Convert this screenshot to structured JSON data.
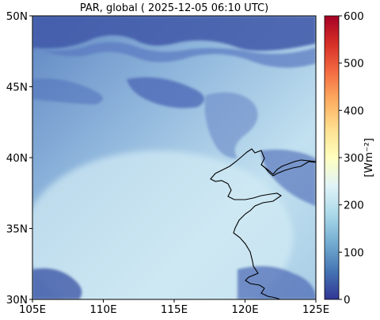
{
  "title": "PAR, global ( 2025-12-05 06:10 UTC)",
  "map": {
    "lon_range": [
      105,
      125
    ],
    "lat_range": [
      30,
      50
    ],
    "x_ticks": [
      {
        "value": 105,
        "label": "105E"
      },
      {
        "value": 110,
        "label": "110E"
      },
      {
        "value": 115,
        "label": "115E"
      },
      {
        "value": 120,
        "label": "120E"
      },
      {
        "value": 125,
        "label": "125E"
      }
    ],
    "y_ticks": [
      {
        "value": 30,
        "label": "30N"
      },
      {
        "value": 35,
        "label": "35N"
      },
      {
        "value": 40,
        "label": "40N"
      },
      {
        "value": 45,
        "label": "45N"
      },
      {
        "value": 50,
        "label": "50N"
      }
    ],
    "coastline_color": "#000000"
  },
  "colorbar": {
    "label": "[Wm⁻²]",
    "range": [
      0,
      600
    ],
    "ticks": [
      {
        "value": 0,
        "label": "0"
      },
      {
        "value": 100,
        "label": "100"
      },
      {
        "value": 200,
        "label": "200"
      },
      {
        "value": 300,
        "label": "300"
      },
      {
        "value": 400,
        "label": "400"
      },
      {
        "value": 500,
        "label": "500"
      },
      {
        "value": 600,
        "label": "600"
      }
    ],
    "colormap_stops": [
      "#313695",
      "#4575b4",
      "#74add1",
      "#abd9e9",
      "#e0f3f8",
      "#ffffbf",
      "#fee090",
      "#fdae61",
      "#f46d43",
      "#d73027",
      "#a50026"
    ]
  }
}
